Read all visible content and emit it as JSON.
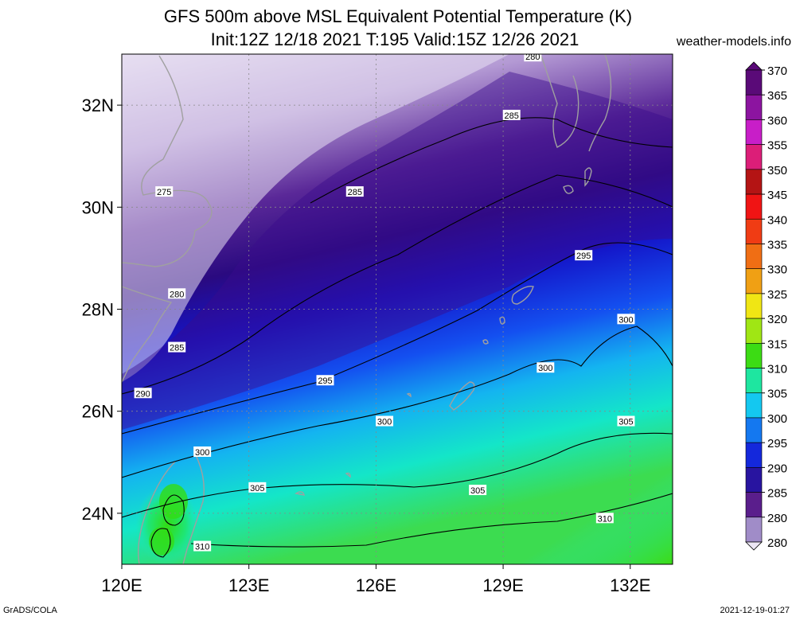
{
  "title": {
    "line1": "GFS 500m above MSL Equivalent Potential Temperature (K)",
    "line2": "Init:12Z 12/18 2021 T:195 Valid:15Z 12/26 2021"
  },
  "site": "weather-models.info",
  "footer": {
    "left": "GrADS/COLA",
    "right": "2021-12-19-01:27"
  },
  "map": {
    "lon_range": [
      120,
      133
    ],
    "lat_range": [
      23,
      33
    ],
    "lon_ticks": [
      {
        "value": 120,
        "label": "120E"
      },
      {
        "value": 123,
        "label": "123E"
      },
      {
        "value": 126,
        "label": "126E"
      },
      {
        "value": 129,
        "label": "129E"
      },
      {
        "value": 132,
        "label": "132E"
      }
    ],
    "lat_ticks": [
      {
        "value": 24,
        "label": "24N"
      },
      {
        "value": 26,
        "label": "26N"
      },
      {
        "value": 28,
        "label": "28N"
      },
      {
        "value": 30,
        "label": "30N"
      },
      {
        "value": 32,
        "label": "32N"
      }
    ],
    "contour_labels": [
      {
        "text": "280",
        "lon": 129.7,
        "lat": 32.95
      },
      {
        "text": "285",
        "lon": 129.2,
        "lat": 31.8
      },
      {
        "text": "275",
        "lon": 121.0,
        "lat": 30.3
      },
      {
        "text": "285",
        "lon": 125.5,
        "lat": 30.3
      },
      {
        "text": "280",
        "lon": 121.3,
        "lat": 28.3
      },
      {
        "text": "295",
        "lon": 130.9,
        "lat": 29.05
      },
      {
        "text": "300",
        "lon": 131.9,
        "lat": 27.8
      },
      {
        "text": "285",
        "lon": 121.3,
        "lat": 27.25
      },
      {
        "text": "300",
        "lon": 130.0,
        "lat": 26.85
      },
      {
        "text": "295",
        "lon": 124.8,
        "lat": 26.6
      },
      {
        "text": "290",
        "lon": 120.5,
        "lat": 26.35
      },
      {
        "text": "300",
        "lon": 126.2,
        "lat": 25.8
      },
      {
        "text": "305",
        "lon": 131.9,
        "lat": 25.8
      },
      {
        "text": "300",
        "lon": 121.9,
        "lat": 25.2
      },
      {
        "text": "305",
        "lon": 123.2,
        "lat": 24.5
      },
      {
        "text": "305",
        "lon": 128.4,
        "lat": 24.45
      },
      {
        "text": "310",
        "lon": 131.4,
        "lat": 23.9
      },
      {
        "text": "310",
        "lon": 121.9,
        "lat": 23.35
      }
    ]
  },
  "colorbar": {
    "levels": [
      {
        "label": "370",
        "color": "#5a0a78"
      },
      {
        "label": "365",
        "color": "#8c14a0"
      },
      {
        "label": "360",
        "color": "#c81ec8"
      },
      {
        "label": "355",
        "color": "#dc1e78"
      },
      {
        "label": "350",
        "color": "#b41414"
      },
      {
        "label": "345",
        "color": "#f01414"
      },
      {
        "label": "340",
        "color": "#f03c14"
      },
      {
        "label": "335",
        "color": "#f06e14"
      },
      {
        "label": "330",
        "color": "#f0a014"
      },
      {
        "label": "325",
        "color": "#f0e614"
      },
      {
        "label": "320",
        "color": "#a0e614"
      },
      {
        "label": "315",
        "color": "#3cdc14"
      },
      {
        "label": "310",
        "color": "#1ee6a0"
      },
      {
        "label": "305",
        "color": "#14c8f0"
      },
      {
        "label": "300",
        "color": "#1478f0"
      },
      {
        "label": "295",
        "color": "#1428dc"
      },
      {
        "label": "290",
        "color": "#2814a0"
      },
      {
        "label": "285",
        "color": "#5a1e8c"
      },
      {
        "label": "280",
        "color": "#a08cc8"
      },
      {
        "label": "",
        "color": "#ece6f4"
      }
    ]
  }
}
